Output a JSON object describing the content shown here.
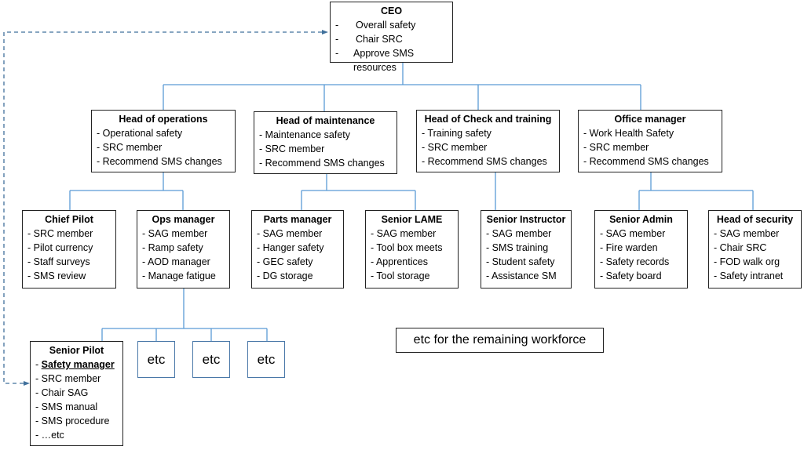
{
  "ceo": {
    "title": "CEO",
    "items": [
      "Overall safety",
      "Chair SRC",
      "Approve SMS resources"
    ]
  },
  "level1": [
    {
      "title": "Head of operations",
      "items": [
        "- Operational safety",
        "- SRC member",
        "- Recommend SMS changes"
      ]
    },
    {
      "title": "Head of maintenance",
      "items": [
        "- Maintenance safety",
        "- SRC member",
        "- Recommend SMS changes"
      ]
    },
    {
      "title": "Head of Check and training",
      "items": [
        "- Training safety",
        "- SRC member",
        "- Recommend SMS changes"
      ]
    },
    {
      "title": "Office manager",
      "items": [
        "- Work Health Safety",
        "- SRC member",
        "- Recommend SMS changes"
      ]
    }
  ],
  "level2": [
    {
      "title": "Chief Pilot",
      "items": [
        "- SRC member",
        "- Pilot currency",
        "- Staff surveys",
        "- SMS review"
      ]
    },
    {
      "title": "Ops manager",
      "items": [
        "- SAG member",
        "- Ramp safety",
        "- AOD manager",
        "- Manage fatigue"
      ]
    },
    {
      "title": "Parts manager",
      "items": [
        "- SAG member",
        "- Hanger safety",
        "- GEC safety",
        "- DG storage"
      ]
    },
    {
      "title": "Senior LAME",
      "items": [
        "- SAG member",
        "- Tool box meets",
        "- Apprentices",
        "- Tool storage"
      ]
    },
    {
      "title": "Senior Instructor",
      "items": [
        "- SAG member",
        "- SMS training",
        "- Student safety",
        "- Assistance SM"
      ]
    },
    {
      "title": "Senior Admin",
      "items": [
        "- SAG member",
        "- Fire warden",
        "- Safety records",
        "- Safety board"
      ]
    },
    {
      "title": "Head of security",
      "items": [
        "- SAG member",
        "- Chair SRC",
        "- FOD walk org",
        "- Safety intranet"
      ]
    }
  ],
  "senior_pilot": {
    "title": "Senior Pilot",
    "highlight": "Safety manager",
    "items": [
      "- SRC member",
      "- Chair SAG",
      "- SMS manual",
      "- SMS procedure",
      "- …etc"
    ]
  },
  "etc_boxes": [
    "etc",
    "etc",
    "etc"
  ],
  "note": "etc for the remaining workforce",
  "colors": {
    "connector": "#5b9bd5",
    "dashed": "#41719c"
  }
}
